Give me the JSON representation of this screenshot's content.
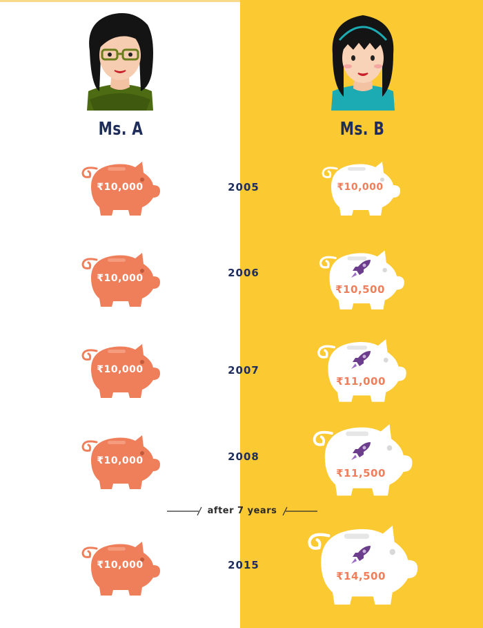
{
  "people": {
    "a": {
      "name": "Ms. A"
    },
    "b": {
      "name": "Ms. B"
    }
  },
  "rows": [
    {
      "year": "2005",
      "a_value": "₹10,000",
      "b_value": "₹10,000",
      "b_rocket": false
    },
    {
      "year": "2006",
      "a_value": "₹10,000",
      "b_value": "₹10,500",
      "b_rocket": true
    },
    {
      "year": "2007",
      "a_value": "₹10,000",
      "b_value": "₹11,000",
      "b_rocket": true
    },
    {
      "year": "2008",
      "a_value": "₹10,000",
      "b_value": "₹11,500",
      "b_rocket": true
    },
    {
      "year": "2015",
      "a_value": "₹10,000",
      "b_value": "₹14,500",
      "b_rocket": true
    }
  ],
  "divider": {
    "label": "after 7 years"
  },
  "colors": {
    "background_left": "#ffffff",
    "background_right": "#fbc931",
    "pig_orange": "#ef7e5b",
    "pig_white": "#ffffff",
    "text_navy": "#1f2d5b",
    "rocket_purple": "#6b3d8c"
  },
  "icons": {
    "piggy_bank": "piggy-bank-icon",
    "rocket": "rocket-icon",
    "avatar": "woman-avatar-icon"
  }
}
